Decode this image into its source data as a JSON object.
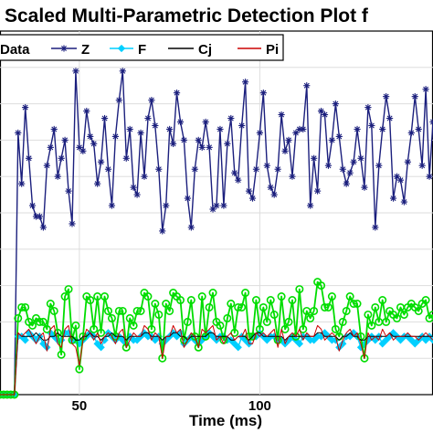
{
  "chart_data": {
    "type": "line",
    "title": "Scaled Multi-Parametric Detection Plot f",
    "xlabel": "Time (ms)",
    "ylabel": "",
    "xlim": [
      28,
      148
    ],
    "ylim": [
      0,
      10
    ],
    "xticks": [
      50,
      100
    ],
    "grid": true,
    "legend_position": "top",
    "legend": [
      "Data",
      "Z",
      "F",
      "Cj",
      "Pi"
    ],
    "x": [
      28,
      29,
      30,
      31,
      32,
      33,
      34,
      35,
      36,
      37,
      38,
      39,
      40,
      41,
      42,
      43,
      44,
      45,
      46,
      47,
      48,
      49,
      50,
      51,
      52,
      53,
      54,
      55,
      56,
      57,
      58,
      59,
      60,
      61,
      62,
      63,
      64,
      65,
      66,
      67,
      68,
      69,
      70,
      71,
      72,
      73,
      74,
      75,
      76,
      77,
      78,
      79,
      80,
      81,
      82,
      83,
      84,
      85,
      86,
      87,
      88,
      89,
      90,
      91,
      92,
      93,
      94,
      95,
      96,
      97,
      98,
      99,
      100,
      101,
      102,
      103,
      104,
      105,
      106,
      107,
      108,
      109,
      110,
      111,
      112,
      113,
      114,
      115,
      116,
      117,
      118,
      119,
      120,
      121,
      122,
      123,
      124,
      125,
      126,
      127,
      128,
      129,
      130,
      131,
      132,
      133,
      134,
      135,
      136,
      137,
      138,
      139,
      140,
      141,
      142,
      143,
      144,
      145,
      146,
      147,
      148
    ],
    "series": [
      {
        "name": "Z",
        "color": "#1b1f7d",
        "marker": "asterisk",
        "values": [
          0,
          0,
          0,
          0,
          0,
          7.2,
          5.8,
          7.9,
          6.5,
          5.2,
          4.9,
          4.9,
          4.6,
          6.3,
          6.8,
          7.3,
          6.0,
          6.5,
          7.0,
          5.6,
          4.7,
          8.9,
          6.8,
          6.7,
          7.8,
          7.1,
          6.9,
          5.8,
          6.4,
          7.6,
          6.2,
          5.2,
          7.1,
          8.1,
          8.9,
          6.5,
          7.3,
          5.7,
          5.5,
          7.2,
          6.0,
          7.6,
          8.1,
          7.4,
          6.2,
          4.5,
          5.2,
          7.3,
          6.9,
          8.3,
          7.5,
          7.0,
          5.4,
          4.6,
          6.2,
          7.0,
          6.8,
          7.5,
          6.8,
          5.1,
          5.2,
          7.3,
          5.2,
          6.9,
          7.6,
          6.1,
          5.9,
          7.4,
          8.6,
          5.6,
          5.4,
          6.2,
          7.2,
          8.3,
          6.3,
          5.7,
          5.5,
          6.2,
          7.7,
          6.7,
          7.0,
          6.0,
          7.2,
          7.3,
          7.3,
          8.5,
          5.2,
          6.5,
          5.6,
          7.8,
          7.7,
          6.3,
          7.0,
          8.0,
          7.1,
          6.2,
          5.8,
          6.1,
          6.4,
          7.3,
          6.5,
          5.7,
          7.9,
          7.4,
          4.6,
          6.3,
          7.3,
          8.2,
          7.6,
          5.4,
          6.0,
          5.9,
          5.3,
          6.4,
          7.2,
          8.2,
          7.3,
          6.3,
          8.4,
          6.0,
          7.5
        ]
      },
      {
        "name": "F",
        "color": "#00cfff",
        "marker": "diamond",
        "values": [
          0,
          0,
          0,
          0,
          0,
          1.6,
          1.6,
          1.5,
          1.7,
          1.6,
          1.5,
          1.6,
          1.4,
          1.3,
          1.7,
          1.6,
          1.5,
          1.5,
          1.7,
          1.7,
          1.5,
          1.5,
          1.4,
          1.5,
          1.6,
          1.7,
          1.6,
          1.4,
          1.3,
          1.5,
          1.7,
          1.6,
          1.5,
          1.6,
          1.5,
          1.4,
          1.6,
          1.5,
          1.5,
          1.6,
          1.7,
          1.6,
          1.6,
          1.5,
          1.6,
          1.4,
          1.5,
          1.6,
          1.7,
          1.6,
          1.7,
          1.4,
          1.5,
          1.6,
          1.5,
          1.4,
          1.5,
          1.6,
          1.7,
          1.6,
          1.5,
          1.6,
          1.6,
          1.5,
          1.5,
          1.4,
          1.3,
          1.6,
          1.5,
          1.4,
          1.6,
          1.6,
          1.7,
          1.6,
          1.5,
          1.6,
          1.6,
          1.5,
          1.5,
          1.4,
          1.5,
          1.6,
          1.5,
          1.4,
          1.6,
          1.6,
          1.5,
          1.5,
          1.6,
          1.6,
          1.7,
          1.6,
          1.5,
          1.5,
          1.3,
          1.4,
          1.6,
          1.6,
          1.7,
          1.6,
          1.3,
          1.4,
          1.5,
          1.6,
          1.5,
          1.6,
          1.4,
          1.5,
          1.6,
          1.7,
          1.6,
          1.5,
          1.6,
          1.6,
          1.5,
          1.4,
          1.5,
          1.6,
          1.5,
          1.6,
          1.5
        ]
      },
      {
        "name": "Cj",
        "color": "#000000",
        "marker": "none",
        "values": [
          0,
          0,
          0,
          0,
          0,
          1.7,
          1.6,
          1.6,
          1.6,
          1.6,
          1.7,
          1.6,
          1.5,
          1.5,
          1.6,
          1.6,
          1.7,
          1.6,
          1.6,
          1.6,
          1.6,
          1.5,
          1.5,
          1.6,
          1.6,
          1.7,
          1.6,
          1.6,
          1.5,
          1.6,
          1.6,
          1.7,
          1.6,
          1.6,
          1.6,
          1.5,
          1.6,
          1.6,
          1.6,
          1.6,
          1.7,
          1.7,
          1.6,
          1.6,
          1.6,
          1.5,
          1.6,
          1.6,
          1.7,
          1.7,
          1.6,
          1.6,
          1.5,
          1.6,
          1.6,
          1.6,
          1.6,
          1.6,
          1.7,
          1.7,
          1.6,
          1.6,
          1.6,
          1.6,
          1.5,
          1.5,
          1.6,
          1.6,
          1.6,
          1.5,
          1.6,
          1.7,
          1.7,
          1.6,
          1.6,
          1.6,
          1.6,
          1.6,
          1.6,
          1.5,
          1.6,
          1.6,
          1.6,
          1.6,
          1.6,
          1.6,
          1.6,
          1.6,
          1.7,
          1.7,
          1.6,
          1.6,
          1.6,
          1.6,
          1.5,
          1.6,
          1.6,
          1.7,
          1.6,
          1.6,
          1.5,
          1.5,
          1.6,
          1.6,
          1.6,
          1.6,
          1.6,
          1.6,
          1.7,
          1.6,
          1.6,
          1.6,
          1.6,
          1.6,
          1.6,
          1.6,
          1.6,
          1.6,
          1.6,
          1.6,
          1.6
        ]
      },
      {
        "name": "Pi",
        "color": "#cc0000",
        "marker": "none",
        "values": [
          0,
          0,
          0,
          0,
          0,
          1.7,
          1.6,
          1.7,
          1.8,
          1.6,
          1.4,
          1.6,
          1.7,
          1.2,
          1.8,
          1.9,
          1.4,
          1.3,
          1.8,
          1.9,
          1.4,
          1.3,
          0.8,
          1.5,
          1.8,
          1.7,
          1.5,
          1.7,
          1.4,
          1.6,
          1.7,
          1.6,
          1.4,
          1.7,
          1.8,
          1.3,
          1.5,
          1.7,
          1.6,
          1.6,
          1.9,
          1.8,
          1.5,
          1.7,
          1.6,
          1.0,
          1.6,
          1.6,
          1.9,
          1.7,
          1.8,
          1.3,
          1.5,
          1.7,
          1.6,
          1.3,
          1.8,
          1.7,
          1.8,
          1.9,
          1.5,
          1.6,
          1.4,
          1.6,
          1.7,
          1.5,
          1.6,
          1.6,
          1.8,
          1.4,
          1.4,
          1.7,
          1.6,
          1.7,
          1.6,
          1.7,
          1.8,
          1.3,
          1.8,
          1.4,
          1.6,
          1.7,
          1.6,
          1.8,
          1.5,
          1.7,
          1.6,
          1.6,
          1.9,
          1.8,
          1.5,
          1.6,
          1.7,
          1.6,
          1.2,
          1.5,
          1.7,
          1.8,
          1.6,
          1.7,
          1.4,
          1.0,
          1.7,
          1.5,
          1.6,
          1.5,
          1.8,
          1.6,
          1.7,
          1.5,
          1.6,
          1.6,
          1.6,
          1.7,
          1.6,
          1.6,
          1.5,
          1.6,
          1.7,
          1.6,
          1.5
        ]
      },
      {
        "name": "Data",
        "color": "#00dd00",
        "marker": "circle",
        "values": [
          0,
          0,
          0,
          0,
          0,
          2.1,
          2.4,
          2.4,
          2.0,
          1.9,
          2.1,
          2.0,
          2.0,
          1.8,
          2.5,
          2.3,
          1.7,
          1.1,
          2.7,
          2.9,
          1.5,
          1.9,
          0.7,
          1.6,
          2.7,
          2.6,
          1.8,
          2.7,
          1.7,
          2.7,
          2.3,
          2.1,
          1.6,
          2.3,
          2.3,
          1.3,
          2.1,
          1.9,
          2.3,
          2.3,
          2.8,
          2.7,
          1.8,
          2.5,
          2.2,
          1.0,
          2.5,
          2.3,
          2.8,
          2.7,
          2.6,
          1.5,
          2.0,
          2.6,
          1.6,
          1.3,
          2.7,
          1.6,
          2.4,
          2.8,
          2.0,
          1.9,
          1.5,
          2.1,
          2.5,
          1.7,
          2.4,
          2.4,
          2.8,
          1.6,
          1.6,
          2.6,
          1.8,
          2.4,
          2.0,
          2.6,
          2.2,
          1.5,
          2.7,
          1.8,
          2.0,
          2.6,
          1.6,
          2.9,
          1.8,
          2.3,
          2.1,
          2.3,
          3.1,
          3.0,
          2.4,
          2.4,
          2.7,
          1.8,
          1.6,
          2.0,
          2.3,
          2.7,
          2.5,
          2.5,
          1.6,
          1.0,
          2.2,
          1.9,
          2.4,
          2.0,
          2.6,
          2.0,
          2.3,
          2.2,
          2.1,
          2.4,
          2.2,
          2.4,
          2.5,
          2.4,
          2.3,
          2.5,
          2.6,
          2.1,
          2.2
        ]
      }
    ]
  }
}
